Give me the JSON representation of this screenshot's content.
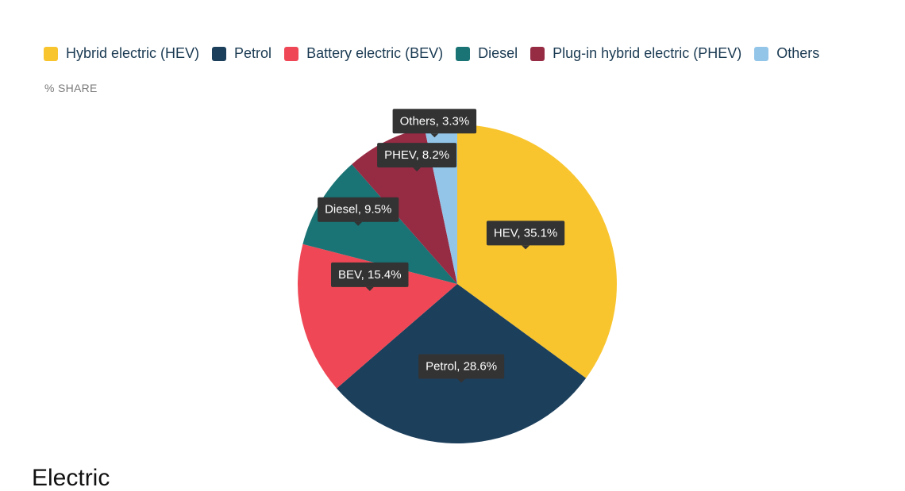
{
  "chart_data": {
    "type": "pie",
    "subtitle": "% SHARE",
    "legend_position": "top",
    "slices": [
      {
        "name": "Hybrid electric (HEV)",
        "short": "HEV",
        "value": 35.1,
        "label": "HEV, 35.1%",
        "color": "#f9c52f"
      },
      {
        "name": "Petrol",
        "short": "Petrol",
        "value": 28.6,
        "label": "Petrol, 28.6%",
        "color": "#1c3f5c"
      },
      {
        "name": "Battery electric (BEV)",
        "short": "BEV",
        "value": 15.4,
        "label": "BEV, 15.4%",
        "color": "#ef4755"
      },
      {
        "name": "Diesel",
        "short": "Diesel",
        "value": 9.5,
        "label": "Diesel, 9.5%",
        "color": "#1a7374"
      },
      {
        "name": "Plug-in hybrid electric (PHEV)",
        "short": "PHEV",
        "value": 8.2,
        "label": "PHEV, 8.2%",
        "color": "#962b44"
      },
      {
        "name": "Others",
        "short": "Others",
        "value": 3.3,
        "label": "Others, 3.3%",
        "color": "#93c5e8"
      }
    ]
  },
  "footer": {
    "text": "Electric"
  }
}
